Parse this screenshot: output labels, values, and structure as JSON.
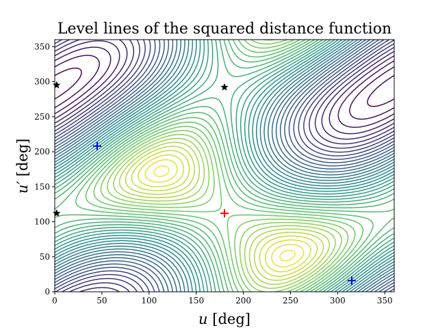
{
  "chart_data": {
    "type": "contour",
    "title": "Level lines of the squared distance function",
    "xlabel": "u [deg]",
    "ylabel": "u′ [deg]",
    "xlabel_parts": {
      "var": "u",
      "unit": " [deg]"
    },
    "ylabel_parts": {
      "var": "u′",
      "unit": " [deg]"
    },
    "xlim": [
      0,
      360
    ],
    "ylim": [
      0,
      360
    ],
    "xticks": [
      0,
      50,
      100,
      150,
      200,
      250,
      300,
      350
    ],
    "yticks": [
      0,
      50,
      100,
      150,
      200,
      250,
      300,
      350
    ],
    "grid": false,
    "colormap": [
      "#440154",
      "#3b528b",
      "#21918c",
      "#5ec962",
      "#fde725"
    ],
    "contour_levels": 40,
    "minimum": {
      "u": 180,
      "u_prime": 112
    },
    "markers": [
      {
        "type": "cross",
        "color": "#ff0000",
        "u": 180,
        "u_prime": 112
      },
      {
        "type": "cross",
        "color": "#0000ff",
        "u": 45,
        "u_prime": 208
      },
      {
        "type": "cross",
        "color": "#0000ff",
        "u": 315,
        "u_prime": 16
      },
      {
        "type": "star",
        "color": "#000000",
        "u": 180,
        "u_prime": 292
      },
      {
        "type": "star",
        "color": "#000000",
        "u": 2,
        "u_prime": 295
      },
      {
        "type": "star",
        "color": "#000000",
        "u": 2,
        "u_prime": 112
      }
    ]
  }
}
